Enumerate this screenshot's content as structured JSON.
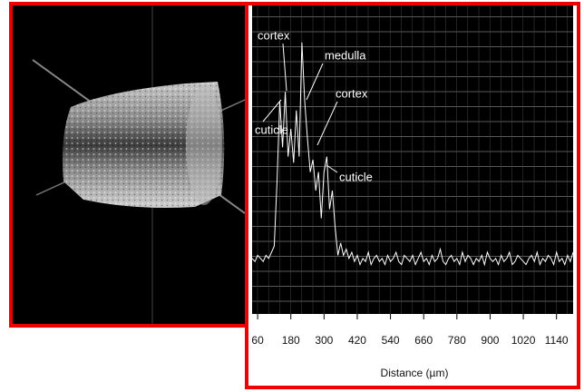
{
  "chart_data": {
    "type": "line",
    "xlabel": "Distance (µm)",
    "xlim": [
      40,
      1200
    ],
    "xticks": [
      60,
      180,
      300,
      420,
      540,
      660,
      780,
      900,
      1020,
      1140
    ],
    "ylim": [
      0,
      100
    ],
    "grid": true,
    "annotations": [
      "cortex",
      "medulla",
      "cortex",
      "cuticle",
      "cuticle"
    ],
    "series": [
      {
        "color": "#ffffff",
        "x": [
          40,
          50,
          60,
          70,
          80,
          90,
          100,
          110,
          120,
          130,
          140,
          150,
          160,
          170,
          180,
          190,
          200,
          210,
          220,
          230,
          240,
          250,
          260,
          270,
          280,
          290,
          300,
          310,
          320,
          330,
          340,
          350,
          360,
          370,
          380,
          390,
          400,
          410,
          420,
          430,
          440,
          450,
          460,
          470,
          480,
          490,
          500,
          510,
          520,
          530,
          540,
          550,
          560,
          570,
          580,
          590,
          600,
          610,
          620,
          630,
          640,
          650,
          660,
          670,
          680,
          690,
          700,
          710,
          720,
          730,
          740,
          750,
          760,
          770,
          780,
          790,
          800,
          810,
          820,
          830,
          840,
          850,
          860,
          870,
          880,
          890,
          900,
          910,
          920,
          930,
          940,
          950,
          960,
          970,
          980,
          990,
          1000,
          1010,
          1020,
          1030,
          1040,
          1050,
          1060,
          1070,
          1080,
          1090,
          1100,
          1110,
          1120,
          1130,
          1140,
          1150,
          1160,
          1170,
          1180,
          1190,
          1200
        ],
        "values": [
          18,
          17,
          19,
          18,
          17,
          19,
          18,
          20,
          22,
          43,
          69,
          54,
          72,
          51,
          60,
          49,
          66,
          51,
          88,
          69,
          57,
          46,
          50,
          40,
          46,
          31,
          46,
          51,
          34,
          40,
          28,
          19,
          23,
          19,
          21,
          18,
          20,
          17,
          19,
          16,
          18,
          17,
          20,
          16,
          18,
          19,
          17,
          18,
          16,
          19,
          17,
          18,
          20,
          17,
          16,
          19,
          18,
          17,
          19,
          16,
          18,
          20,
          17,
          18,
          16,
          19,
          17,
          18,
          21,
          17,
          16,
          18,
          19,
          17,
          18,
          16,
          20,
          17,
          19,
          18,
          16,
          18,
          17,
          19,
          16,
          20,
          18,
          17,
          18,
          16,
          19,
          17,
          18,
          20,
          16,
          17,
          19,
          18,
          17,
          16,
          18,
          19,
          17,
          20,
          16,
          18,
          17,
          19,
          18,
          16,
          20,
          17,
          18,
          16,
          19,
          17,
          20
        ]
      }
    ]
  }
}
